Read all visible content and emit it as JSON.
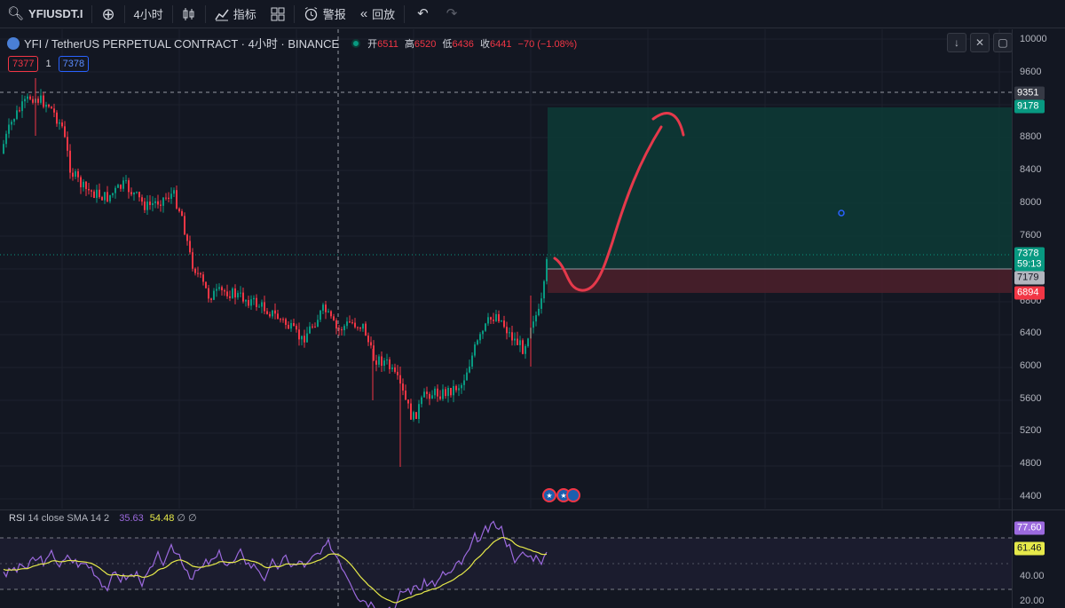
{
  "toolbar": {
    "symbol": "YFIUSDT.I",
    "interval": "4小时",
    "indicators_label": "指标",
    "alerts_label": "警报",
    "replay_label": "回放"
  },
  "legend": {
    "title": "YFI / TetherUS PERPETUAL CONTRACT · 4小时 · BINANCE",
    "open_label": "开",
    "open": "6511",
    "high_label": "高",
    "high": "6520",
    "low_label": "低",
    "low": "6436",
    "close_label": "收",
    "close": "6441",
    "change": "−70 (−1.08%)",
    "sell_price": "7377",
    "qty": "1",
    "buy_price": "7378"
  },
  "price_axis": {
    "ticks": [
      "10000",
      "9600",
      "8800",
      "8400",
      "8000",
      "7600",
      "6800",
      "6400",
      "6000",
      "5600",
      "5200",
      "4800",
      "4400"
    ],
    "tags": {
      "crosshair": "9351",
      "target": "9178",
      "last": "7378",
      "countdown": "59:13",
      "entry": "7179",
      "stop": "6894"
    }
  },
  "rsi": {
    "label": "RSI",
    "params": "14 close SMA 14 2",
    "value": "35.63",
    "ma_value": "54.48",
    "extra": "∅ ∅",
    "ticks": [
      "40.00",
      "20.00"
    ],
    "tags": {
      "rsi": "77.60",
      "ma": "61.46"
    }
  },
  "colors": {
    "bg": "#131722",
    "up": "#089981",
    "down": "#f23645",
    "rsi_line": "#9c6ade",
    "rsi_ma": "#e6e94a",
    "target_zone": "#0d3b36",
    "stop_zone": "#4a1f2a",
    "arrow": "#e5394b"
  },
  "icons": [
    "search-icon",
    "plus-circle-icon",
    "candles-icon",
    "indicators-icon",
    "layout-grid-icon",
    "alarm-icon",
    "replay-icon",
    "undo-icon",
    "redo-icon"
  ]
}
